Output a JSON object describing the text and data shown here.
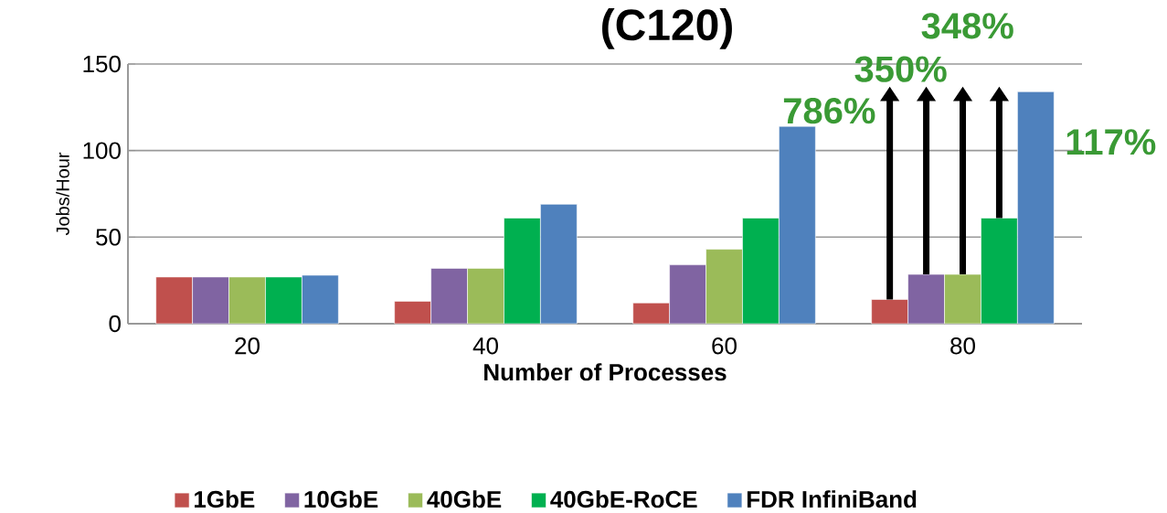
{
  "chart_data": {
    "type": "bar",
    "title": "(C120)",
    "xlabel": "Number of Processes",
    "ylabel": "Jobs/Hour",
    "categories": [
      "20",
      "40",
      "60",
      "80"
    ],
    "series": [
      {
        "name": "1GbE",
        "color": "#c0504d",
        "values": [
          27,
          13,
          12,
          14
        ]
      },
      {
        "name": "10GbE",
        "color": "#8064a2",
        "values": [
          27,
          32,
          34,
          28.5
        ]
      },
      {
        "name": "40GbE",
        "color": "#9bbb59",
        "values": [
          27,
          32,
          43,
          28.5
        ]
      },
      {
        "name": "40GbE-RoCE",
        "color": "#00b050",
        "values": [
          27,
          61,
          61,
          61
        ]
      },
      {
        "name": "FDR InfiniBand",
        "color": "#4f81bd",
        "values": [
          28,
          69,
          114,
          134
        ]
      }
    ],
    "annotations": [
      "786%",
      "350%",
      "348%",
      "117%"
    ],
    "ylim": [
      0,
      150
    ],
    "yticks": [
      0,
      50,
      100,
      150
    ],
    "grid": "y",
    "legend": "bottom"
  }
}
